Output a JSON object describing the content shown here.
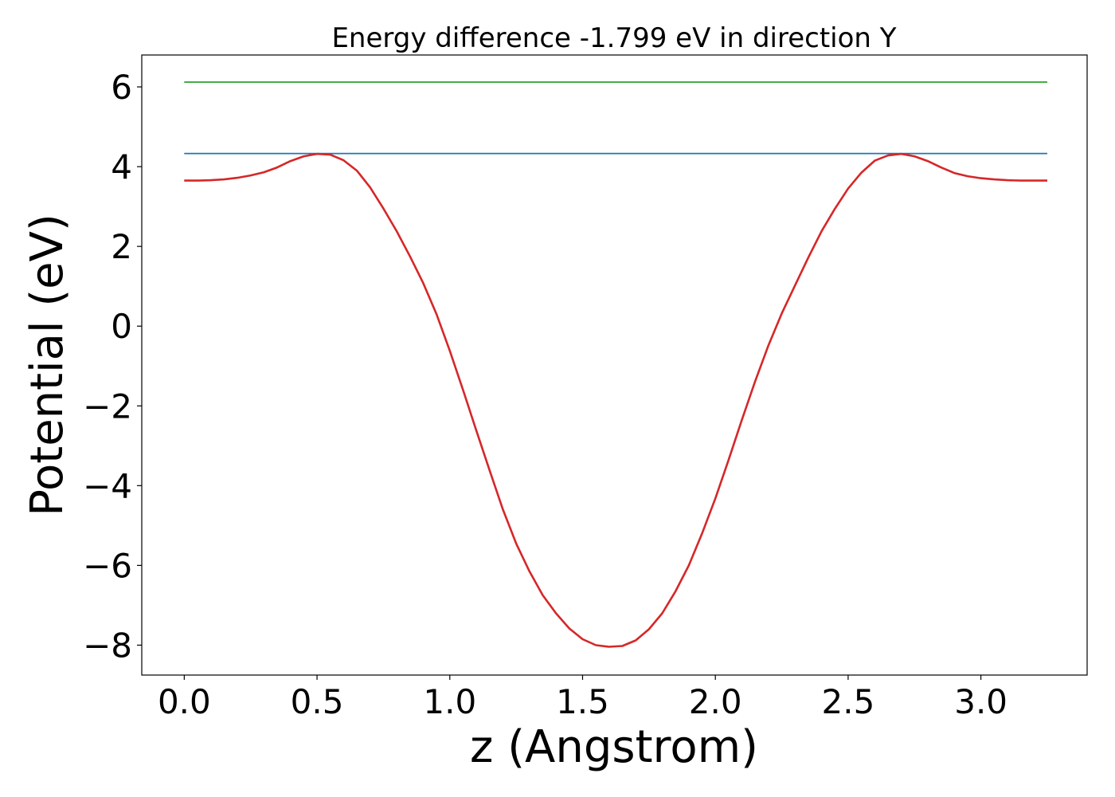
{
  "chart_data": {
    "type": "line",
    "title": "Energy difference -1.799 eV in direction Y",
    "xlabel": "z (Angstrom)",
    "ylabel": "Potential (eV)",
    "xlim": [
      -0.16,
      3.4
    ],
    "ylim": [
      -8.75,
      6.8
    ],
    "xticks": [
      0.0,
      0.5,
      1.0,
      1.5,
      2.0,
      2.5,
      3.0
    ],
    "xtick_labels": [
      "0.0",
      "0.5",
      "1.0",
      "1.5",
      "2.0",
      "2.5",
      "3.0"
    ],
    "yticks": [
      6,
      4,
      2,
      0,
      -2,
      -4,
      -6,
      -8
    ],
    "ytick_labels": [
      "6",
      "4",
      "2",
      "0",
      "−2",
      "−4",
      "−6",
      "−8"
    ],
    "grid": false,
    "legend": null,
    "series": [
      {
        "color": "#2ca02c",
        "style": "horizontal",
        "x": [
          0.0,
          3.25
        ],
        "y": [
          6.12,
          6.12
        ]
      },
      {
        "color": "#1f77b4",
        "style": "horizontal",
        "x": [
          0.0,
          3.25
        ],
        "y": [
          4.33,
          4.33
        ]
      },
      {
        "color": "#d62728",
        "style": "curve",
        "x": [
          0.0,
          0.05,
          0.1,
          0.15,
          0.2,
          0.25,
          0.3,
          0.35,
          0.4,
          0.45,
          0.5,
          0.55,
          0.6,
          0.65,
          0.7,
          0.75,
          0.8,
          0.85,
          0.9,
          0.95,
          1.0,
          1.05,
          1.1,
          1.15,
          1.2,
          1.25,
          1.3,
          1.35,
          1.4,
          1.45,
          1.5,
          1.55,
          1.6,
          1.65,
          1.7,
          1.75,
          1.8,
          1.85,
          1.9,
          1.95,
          2.0,
          2.05,
          2.1,
          2.15,
          2.2,
          2.25,
          2.3,
          2.35,
          2.4,
          2.45,
          2.5,
          2.55,
          2.6,
          2.65,
          2.7,
          2.75,
          2.8,
          2.85,
          2.9,
          2.95,
          3.0,
          3.05,
          3.1,
          3.15,
          3.2,
          3.25
        ],
        "y": [
          3.65,
          3.65,
          3.66,
          3.68,
          3.72,
          3.78,
          3.86,
          3.98,
          4.14,
          4.26,
          4.32,
          4.3,
          4.16,
          3.9,
          3.48,
          2.95,
          2.38,
          1.75,
          1.08,
          0.3,
          -0.62,
          -1.6,
          -2.62,
          -3.62,
          -4.6,
          -5.45,
          -6.15,
          -6.75,
          -7.2,
          -7.58,
          -7.85,
          -8.0,
          -8.04,
          -8.02,
          -7.88,
          -7.6,
          -7.2,
          -6.65,
          -6.0,
          -5.2,
          -4.32,
          -3.35,
          -2.35,
          -1.38,
          -0.48,
          0.32,
          1.02,
          1.72,
          2.38,
          2.94,
          3.45,
          3.85,
          4.15,
          4.28,
          4.32,
          4.26,
          4.14,
          3.98,
          3.84,
          3.76,
          3.71,
          3.68,
          3.66,
          3.65,
          3.65,
          3.65
        ]
      }
    ]
  }
}
